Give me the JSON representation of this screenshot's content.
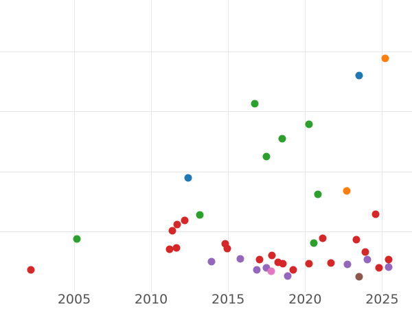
{
  "chart_data": {
    "type": "scatter",
    "title": "",
    "xlabel": "",
    "ylabel": "",
    "grid": true,
    "legend": false,
    "background_color": "#ffffff",
    "gridline_color": "#e6e6e6",
    "tick_label_color": "#525252",
    "x_axis": {
      "ticks": [
        "2005",
        "2010",
        "2015",
        "2020",
        "2025"
      ],
      "tick_values": [
        2005,
        2010,
        2015,
        2020,
        2025
      ],
      "range": [
        2000.2,
        2026.9
      ]
    },
    "y_axis": {
      "tick_labels_visible": false,
      "gridline_values": [
        1,
        2,
        3,
        4
      ],
      "range": [
        0,
        4.86
      ]
    },
    "series": [
      {
        "name": "red",
        "color": "#d62728",
        "points": [
          {
            "x": 2002.2,
            "y": 0.37
          },
          {
            "x": 2011.2,
            "y": 0.71
          },
          {
            "x": 2011.65,
            "y": 0.74
          },
          {
            "x": 2011.4,
            "y": 1.02
          },
          {
            "x": 2011.7,
            "y": 1.12
          },
          {
            "x": 2012.2,
            "y": 1.19
          },
          {
            "x": 2014.8,
            "y": 0.8
          },
          {
            "x": 2014.95,
            "y": 0.73
          },
          {
            "x": 2017.05,
            "y": 0.54
          },
          {
            "x": 2017.85,
            "y": 0.61
          },
          {
            "x": 2018.25,
            "y": 0.5
          },
          {
            "x": 2018.55,
            "y": 0.47
          },
          {
            "x": 2019.25,
            "y": 0.37
          },
          {
            "x": 2020.25,
            "y": 0.47
          },
          {
            "x": 2021.15,
            "y": 0.9
          },
          {
            "x": 2021.7,
            "y": 0.49
          },
          {
            "x": 2023.35,
            "y": 0.87
          },
          {
            "x": 2023.9,
            "y": 0.67
          },
          {
            "x": 2024.6,
            "y": 1.29
          },
          {
            "x": 2024.8,
            "y": 0.4
          },
          {
            "x": 2025.45,
            "y": 0.54
          }
        ]
      },
      {
        "name": "green",
        "color": "#2ca02c",
        "points": [
          {
            "x": 2005.2,
            "y": 0.89
          },
          {
            "x": 2013.15,
            "y": 1.28
          },
          {
            "x": 2016.75,
            "y": 3.13
          },
          {
            "x": 2017.5,
            "y": 2.26
          },
          {
            "x": 2018.5,
            "y": 2.55
          },
          {
            "x": 2020.25,
            "y": 2.79
          },
          {
            "x": 2020.55,
            "y": 0.82
          },
          {
            "x": 2020.85,
            "y": 1.63
          }
        ]
      },
      {
        "name": "blue",
        "color": "#1f77b4",
        "points": [
          {
            "x": 2012.4,
            "y": 1.9
          },
          {
            "x": 2023.5,
            "y": 3.6
          }
        ]
      },
      {
        "name": "orange",
        "color": "#ff7f0e",
        "points": [
          {
            "x": 2022.7,
            "y": 1.68
          },
          {
            "x": 2025.2,
            "y": 3.89
          }
        ]
      },
      {
        "name": "purple",
        "color": "#9467bd",
        "points": [
          {
            "x": 2013.9,
            "y": 0.51
          },
          {
            "x": 2015.8,
            "y": 0.55
          },
          {
            "x": 2016.85,
            "y": 0.37
          },
          {
            "x": 2017.5,
            "y": 0.4
          },
          {
            "x": 2018.85,
            "y": 0.27
          },
          {
            "x": 2022.75,
            "y": 0.46
          },
          {
            "x": 2024.05,
            "y": 0.54
          },
          {
            "x": 2025.45,
            "y": 0.42
          }
        ]
      },
      {
        "name": "pink",
        "color": "#e377c2",
        "points": [
          {
            "x": 2017.8,
            "y": 0.35
          }
        ]
      },
      {
        "name": "brown",
        "color": "#8c564b",
        "points": [
          {
            "x": 2023.5,
            "y": 0.26
          }
        ]
      }
    ]
  }
}
